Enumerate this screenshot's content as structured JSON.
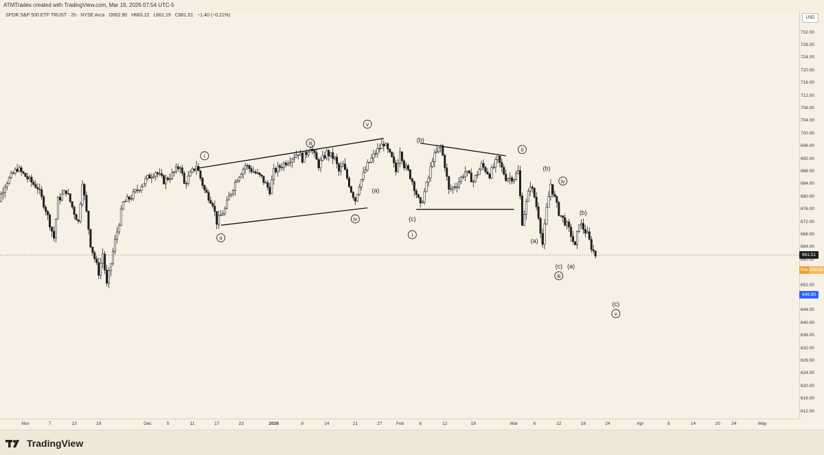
{
  "header": {
    "text": "ATMTrades created with TradingView.com, Mar 19, 2026 07:54 UTC-5"
  },
  "legend": {
    "symbol": "SPDR S&P 500 ETF TRUST · 2h · NYSE Arca",
    "open": "O662.90",
    "high": "H663.22",
    "low": "L661.19",
    "close": "C661.51",
    "change": "−1.40 (−0.21%)"
  },
  "currency": "USD",
  "price_tags": {
    "last": "661.51",
    "pre_label": "Pre",
    "pre_value": "656.88",
    "target": "648.90"
  },
  "colors": {
    "background": "#f7f1e5",
    "candles": "#1f1f1f",
    "pre": "#f0a030",
    "target": "#2962ff"
  },
  "footer": {
    "logo_text": "TradingView"
  },
  "chart_data": {
    "type": "candlestick",
    "symbol": "SPDR S&P 500 ETF TRUST",
    "interval": "2h",
    "ylim": [
      608,
      736
    ],
    "yticks": [
      612,
      616,
      620,
      624,
      628,
      632,
      636,
      640,
      644,
      648,
      652,
      656,
      660,
      664,
      668,
      672,
      676,
      680,
      684,
      688,
      692,
      696,
      700,
      704,
      708,
      712,
      716,
      720,
      724,
      728,
      732
    ],
    "ytick_labels": [
      "612.00",
      "616.00",
      "620.00",
      "624.00",
      "628.00",
      "632.00",
      "636.00",
      "640.00",
      "644.00",
      "648.00",
      "652.00",
      "656.00",
      "660.00",
      "664.00",
      "668.00",
      "672.00",
      "676.00",
      "680.00",
      "684.00",
      "688.00",
      "692.00",
      "696.00",
      "700.00",
      "704.00",
      "708.00",
      "712.00",
      "716.00",
      "720.00",
      "724.00",
      "728.00",
      "732.00"
    ],
    "xticks": [
      {
        "label": "Nov",
        "day": 0,
        "bold": false
      },
      {
        "label": "7",
        "day": 6,
        "bold": false
      },
      {
        "label": "13",
        "day": 12,
        "bold": false
      },
      {
        "label": "19",
        "day": 18,
        "bold": false
      },
      {
        "label": "Dec",
        "day": 30,
        "bold": false
      },
      {
        "label": "5",
        "day": 35,
        "bold": false
      },
      {
        "label": "11",
        "day": 41,
        "bold": false
      },
      {
        "label": "17",
        "day": 47,
        "bold": false
      },
      {
        "label": "23",
        "day": 53,
        "bold": false
      },
      {
        "label": "2026",
        "day": 61,
        "bold": true
      },
      {
        "label": "8",
        "day": 68,
        "bold": false
      },
      {
        "label": "14",
        "day": 74,
        "bold": false
      },
      {
        "label": "21",
        "day": 81,
        "bold": false
      },
      {
        "label": "27",
        "day": 87,
        "bold": false
      },
      {
        "label": "Feb",
        "day": 92,
        "bold": false
      },
      {
        "label": "6",
        "day": 97,
        "bold": false
      },
      {
        "label": "12",
        "day": 103,
        "bold": false
      },
      {
        "label": "19",
        "day": 110,
        "bold": false
      },
      {
        "label": "Mar",
        "day": 120,
        "bold": false
      },
      {
        "label": "6",
        "day": 125,
        "bold": false
      },
      {
        "label": "12",
        "day": 131,
        "bold": false
      },
      {
        "label": "18",
        "day": 137,
        "bold": false
      },
      {
        "label": "24",
        "day": 143,
        "bold": false
      },
      {
        "label": "Apr",
        "day": 151,
        "bold": false
      },
      {
        "label": "8",
        "day": 158,
        "bold": false
      },
      {
        "label": "14",
        "day": 164,
        "bold": false
      },
      {
        "label": "20",
        "day": 170,
        "bold": false
      },
      {
        "label": "24",
        "day": 174,
        "bold": false
      },
      {
        "label": "May",
        "day": 181,
        "bold": false
      }
    ],
    "price_path": [
      [
        -9,
        671
      ],
      [
        -5,
        684
      ],
      [
        -2,
        689
      ],
      [
        2,
        684
      ],
      [
        3,
        683
      ],
      [
        5,
        676
      ],
      [
        7,
        667
      ],
      [
        8,
        679
      ],
      [
        10,
        682
      ],
      [
        12,
        675
      ],
      [
        13,
        672
      ],
      [
        14,
        685
      ],
      [
        16,
        665
      ],
      [
        18,
        656
      ],
      [
        19,
        662
      ],
      [
        20,
        652
      ],
      [
        22,
        666
      ],
      [
        24,
        678
      ],
      [
        26,
        680
      ],
      [
        28,
        683
      ],
      [
        30,
        686
      ],
      [
        32,
        688
      ],
      [
        34,
        685
      ],
      [
        36,
        687
      ],
      [
        38,
        690
      ],
      [
        39,
        684
      ],
      [
        40,
        686
      ],
      [
        42,
        690
      ],
      [
        44,
        682
      ],
      [
        46,
        678
      ],
      [
        47,
        672
      ],
      [
        49,
        676
      ],
      [
        50,
        680
      ],
      [
        52,
        686
      ],
      [
        54,
        690
      ],
      [
        56,
        688
      ],
      [
        58,
        686
      ],
      [
        60,
        682
      ],
      [
        61,
        688
      ],
      [
        63,
        690
      ],
      [
        65,
        692
      ],
      [
        67,
        694
      ],
      [
        68,
        692
      ],
      [
        70,
        696
      ],
      [
        72,
        690
      ],
      [
        74,
        694
      ],
      [
        76,
        692
      ],
      [
        77,
        688
      ],
      [
        78,
        690
      ],
      [
        80,
        682
      ],
      [
        81,
        679
      ],
      [
        82,
        684
      ],
      [
        84,
        690
      ],
      [
        86,
        694
      ],
      [
        88,
        697
      ],
      [
        90,
        692
      ],
      [
        91,
        688
      ],
      [
        92,
        695
      ],
      [
        93,
        690
      ],
      [
        94,
        688
      ],
      [
        95,
        685
      ],
      [
        96,
        681
      ],
      [
        97,
        677
      ],
      [
        99,
        686
      ],
      [
        100,
        692
      ],
      [
        102,
        696
      ],
      [
        103,
        690
      ],
      [
        104,
        682
      ],
      [
        106,
        684
      ],
      [
        108,
        688
      ],
      [
        110,
        685
      ],
      [
        112,
        690
      ],
      [
        114,
        687
      ],
      [
        116,
        692
      ],
      [
        118,
        686
      ],
      [
        120,
        686
      ],
      [
        121,
        688
      ],
      [
        122,
        672
      ],
      [
        124,
        684
      ],
      [
        125,
        680
      ],
      [
        126,
        674
      ],
      [
        127,
        665
      ],
      [
        128,
        676
      ],
      [
        129,
        684
      ],
      [
        131,
        675
      ],
      [
        133,
        671
      ],
      [
        134,
        668
      ],
      [
        135,
        664
      ],
      [
        136,
        672
      ],
      [
        137,
        670
      ],
      [
        138,
        668
      ],
      [
        139,
        664
      ],
      [
        140,
        661.5
      ]
    ],
    "horizontal_lines": [
      {
        "value": 661.51,
        "style": "dotted"
      }
    ],
    "trendlines": [
      {
        "from": [
          42,
          689
        ],
        "to": [
          88,
          698.5
        ]
      },
      {
        "from": [
          48,
          671
        ],
        "to": [
          84,
          676.5
        ]
      },
      {
        "from": [
          97,
          697
        ],
        "to": [
          118,
          693
        ]
      },
      {
        "from": [
          96,
          676
        ],
        "to": [
          120,
          676
        ]
      }
    ],
    "wave_labels": [
      {
        "label": "i",
        "circled": true,
        "day": 44,
        "value": 693
      },
      {
        "label": "ii",
        "circled": true,
        "day": 48,
        "value": 667
      },
      {
        "label": "iii",
        "circled": true,
        "day": 70,
        "value": 697
      },
      {
        "label": "iv",
        "circled": true,
        "day": 81,
        "value": 673
      },
      {
        "label": "v",
        "circled": true,
        "day": 84,
        "value": 703
      },
      {
        "label": "(b)",
        "circled": false,
        "day": 97,
        "value": 698
      },
      {
        "label": "(a)",
        "circled": false,
        "day": 86,
        "value": 682
      },
      {
        "label": "(c)",
        "circled": false,
        "day": 95,
        "value": 673
      },
      {
        "label": "i",
        "circled": true,
        "day": 95,
        "value": 668
      },
      {
        "label": "ii",
        "circled": true,
        "day": 122,
        "value": 695
      },
      {
        "label": "(b)",
        "circled": false,
        "day": 128,
        "value": 689
      },
      {
        "label": "iv",
        "circled": true,
        "day": 132,
        "value": 685
      },
      {
        "label": "(a)",
        "circled": false,
        "day": 125,
        "value": 666
      },
      {
        "label": "(c)",
        "circled": false,
        "day": 131,
        "value": 658
      },
      {
        "label": "iii",
        "circled": true,
        "day": 131,
        "value": 655
      },
      {
        "label": "(b)",
        "circled": false,
        "day": 137,
        "value": 675
      },
      {
        "label": "(a)",
        "circled": false,
        "day": 134,
        "value": 658
      },
      {
        "label": "(c)",
        "circled": false,
        "day": 145,
        "value": 646
      },
      {
        "label": "v",
        "circled": true,
        "day": 145,
        "value": 643
      }
    ]
  }
}
